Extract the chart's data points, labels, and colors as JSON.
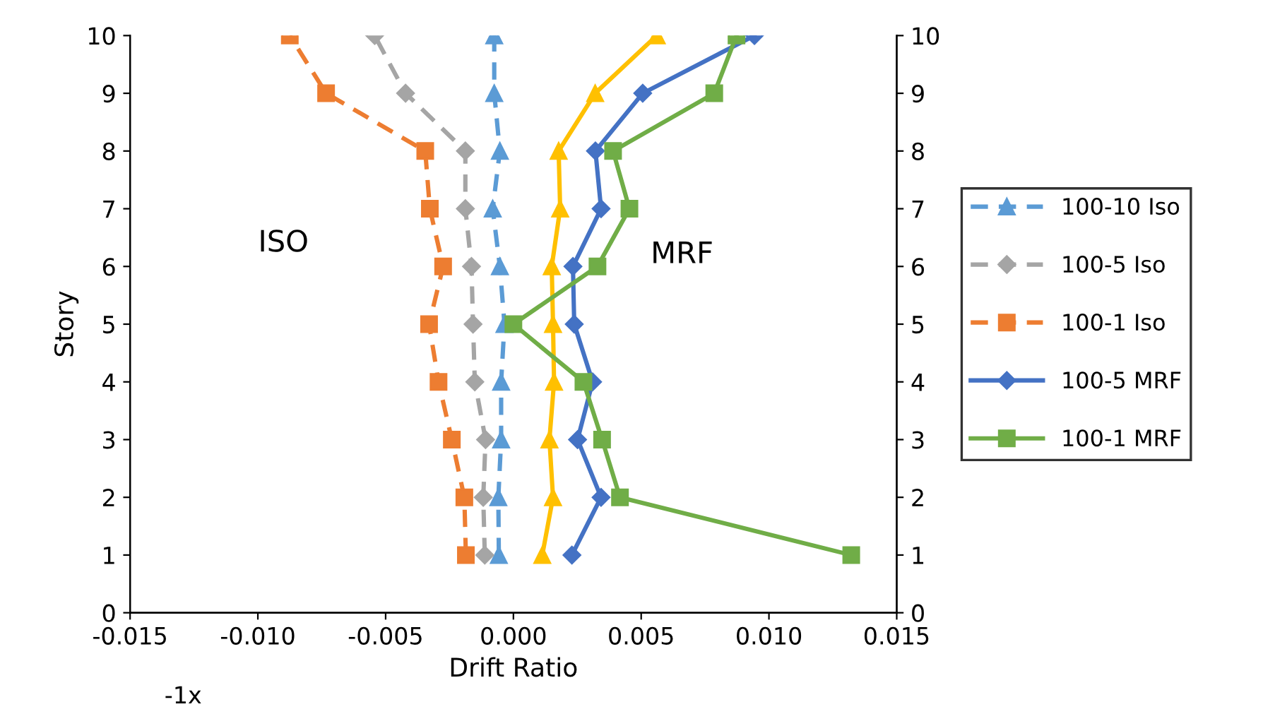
{
  "chart_data": {
    "type": "line",
    "xlabel": "Drift Ratio",
    "ylabel": "Story",
    "annotations": [
      "ISO",
      "MRF",
      "-1x"
    ],
    "xlim": [
      -0.015,
      0.015
    ],
    "xticks": [
      {
        "value": -0.015,
        "label": "-0.015"
      },
      {
        "value": -0.01,
        "label": "-0.010"
      },
      {
        "value": -0.005,
        "label": "-0.005"
      },
      {
        "value": 0,
        "label": "0.000"
      },
      {
        "value": 0.005,
        "label": "0.005"
      },
      {
        "value": 0.01,
        "label": "0.010"
      },
      {
        "value": 0.015,
        "label": "0.015"
      }
    ],
    "ylim": [
      0,
      10
    ],
    "yticks": [
      0,
      1,
      2,
      3,
      4,
      5,
      6,
      7,
      8,
      9,
      10
    ],
    "y2lim": [
      0,
      10
    ],
    "y2ticks": [
      0,
      1,
      2,
      3,
      4,
      5,
      6,
      7,
      8,
      9,
      10
    ],
    "grid": false,
    "legend": "right",
    "series": [
      {
        "name": "100-10 Iso",
        "color": "#5b9bd5",
        "marker": "triangle",
        "line_style": "dashed",
        "x": [
          -0.00057,
          -0.00059,
          -0.00048,
          -0.00048,
          -0.00035,
          -0.00053,
          -0.00081,
          -0.00053,
          -0.00075,
          -0.00075
        ],
        "values": [
          1,
          2,
          3,
          4,
          5,
          6,
          7,
          8,
          9,
          10
        ]
      },
      {
        "name": "100-5 Iso",
        "color": "#a5a5a5",
        "marker": "diamond",
        "line_style": "dashed",
        "x": [
          -0.00112,
          -0.00118,
          -0.00109,
          -0.00151,
          -0.00158,
          -0.00164,
          -0.00188,
          -0.00188,
          -0.00422,
          -0.00543
        ],
        "values": [
          1,
          2,
          3,
          4,
          5,
          6,
          7,
          8,
          9,
          10
        ]
      },
      {
        "name": "100-1 Iso",
        "color": "#ed7d31",
        "marker": "square",
        "line_style": "dashed",
        "x": [
          -0.00186,
          -0.00192,
          -0.00241,
          -0.00293,
          -0.0033,
          -0.00275,
          -0.00327,
          -0.00345,
          -0.00733,
          -0.00875
        ],
        "values": [
          1,
          2,
          3,
          4,
          5,
          6,
          7,
          8,
          9,
          10
        ]
      },
      {
        "color": "#ffc000",
        "marker": "triangle",
        "line_style": "solid",
        "x": [
          0.00113,
          0.00155,
          0.00141,
          0.00159,
          0.00155,
          0.0015,
          0.00183,
          0.00177,
          0.0032,
          0.00561
        ],
        "values": [
          1,
          2,
          3,
          4,
          5,
          6,
          7,
          8,
          9,
          10
        ]
      },
      {
        "name": "100-5 MRF",
        "color": "#4472c4",
        "marker": "diamond",
        "line_style": "solid",
        "x": [
          0.00229,
          0.00343,
          0.00251,
          0.0031,
          0.00238,
          0.00233,
          0.00343,
          0.00321,
          0.00506,
          0.00943
        ],
        "values": [
          1,
          2,
          3,
          4,
          5,
          6,
          7,
          8,
          9,
          10
        ]
      },
      {
        "name": "100-1 MRF",
        "color": "#70ad47",
        "marker": "square",
        "line_style": "solid",
        "x": [
          0.01322,
          0.00417,
          0.00347,
          0.00274,
          0.0,
          0.00329,
          0.00454,
          0.0039,
          0.00786,
          0.00873
        ],
        "values": [
          1,
          2,
          3,
          4,
          5,
          6,
          7,
          8,
          9,
          10
        ]
      }
    ]
  }
}
